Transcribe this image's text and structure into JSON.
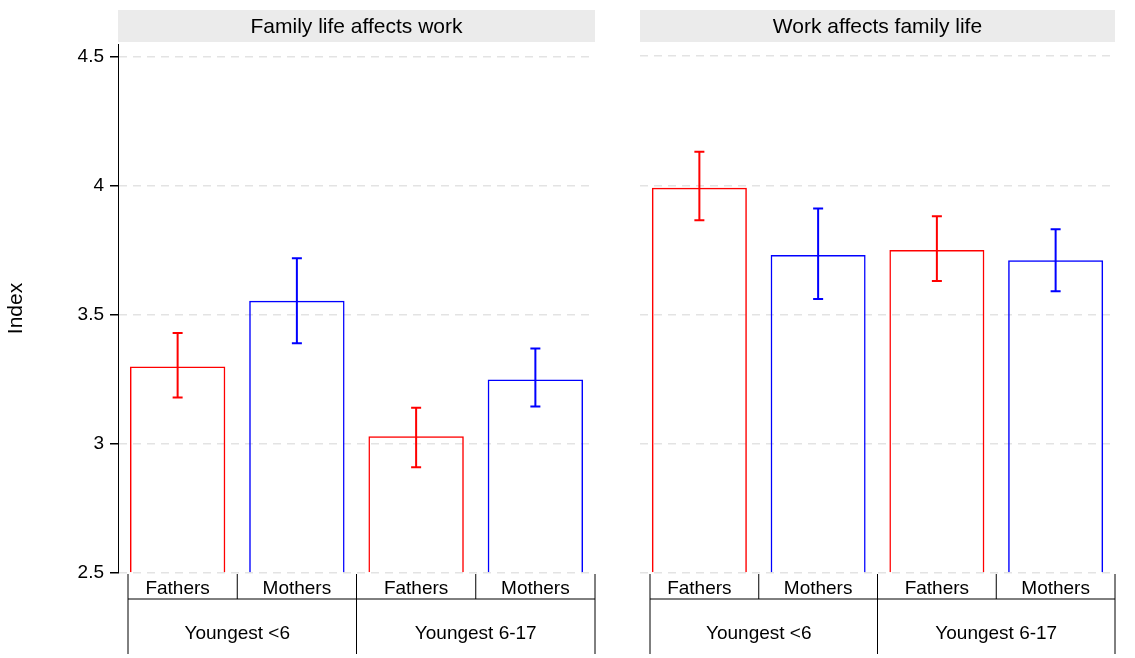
{
  "chart_data": [
    {
      "type": "bar",
      "title": "Family life affects work",
      "ylabel": "Index",
      "categories": [
        "Fathers",
        "Mothers",
        "Fathers",
        "Mothers"
      ],
      "values": [
        3.3,
        3.555,
        3.03,
        3.25
      ],
      "colors": [
        "#ff0000",
        "#0000ff",
        "#ff0000",
        "#0000ff"
      ],
      "errors": [
        [
          3.18,
          3.43
        ],
        [
          3.39,
          3.72
        ],
        [
          2.91,
          3.14
        ],
        [
          3.145,
          3.37
        ]
      ],
      "annotations": [
        "Youngest <6",
        "Youngest 6-17"
      ],
      "ylim": [
        2.5,
        4.55
      ],
      "yticks": [
        2.5,
        3,
        3.5,
        4,
        4.5
      ],
      "grid": "y",
      "legend": false
    },
    {
      "type": "bar",
      "title": "Work affects family life",
      "categories": [
        "Fathers",
        "Mothers",
        "Fathers",
        "Mothers"
      ],
      "values": [
        3.99,
        3.73,
        3.75,
        3.71
      ],
      "colors": [
        "#ff0000",
        "#0000ff",
        "#ff0000",
        "#0000ff"
      ],
      "errors": [
        [
          3.865,
          4.13
        ],
        [
          3.56,
          3.91
        ],
        [
          3.63,
          3.88
        ],
        [
          3.59,
          3.83
        ]
      ],
      "annotations": [
        "Youngest <6",
        "Youngest 6-17"
      ],
      "ylim": [
        2.5,
        4.5
      ],
      "yticks": [
        2.5,
        3,
        3.5,
        4,
        4.5
      ],
      "grid": "y",
      "legend": false,
      "tick_labels": "x"
    }
  ]
}
